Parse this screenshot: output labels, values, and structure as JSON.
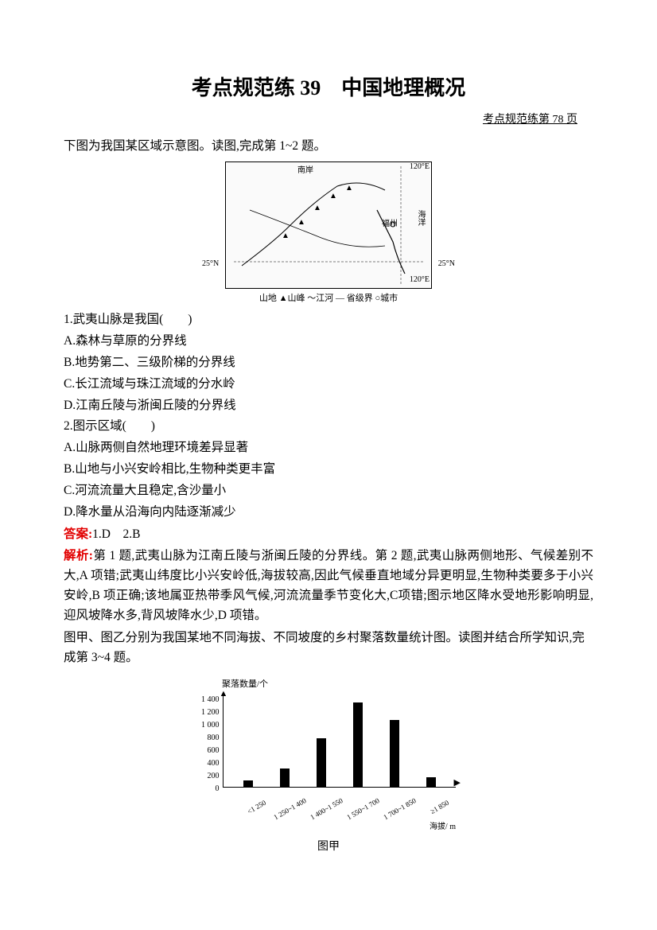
{
  "title": "考点规范练 39　中国地理概况",
  "subtitle": "考点规范练第 78 页",
  "intro1": "下图为我国某区域示意图。读图,完成第 1~2 题。",
  "map": {
    "top_label": "南岸",
    "ne_label": "120°E",
    "ocean_label": "海洋",
    "city_label": "福州",
    "lat_left": "25°N",
    "lat_right": "25°N",
    "lon_right": "120°E",
    "legend": "山地 ▲山峰 ～江河 — 省级界 ○城市"
  },
  "q1": {
    "stem": "1.武夷山脉是我国(　　)",
    "A": "A.森林与草原的分界线",
    "B": "B.地势第二、三级阶梯的分界线",
    "C": "C.长江流域与珠江流域的分水岭",
    "D": "D.江南丘陵与浙闽丘陵的分界线"
  },
  "q2": {
    "stem": "2.图示区域(　　)",
    "A": "A.山脉两侧自然地理环境差异显著",
    "B": "B.山地与小兴安岭相比,生物种类更丰富",
    "C": "C.河流流量大且稳定,含沙量小",
    "D": "D.降水量从沿海向内陆逐渐减少"
  },
  "answer_label": "答案:",
  "answer_text": "1.D　2.B",
  "explain_label": "解析:",
  "explain_text": "第 1 题,武夷山脉为江南丘陵与浙闽丘陵的分界线。第 2 题,武夷山脉两侧地形、气候差别不大,A 项错;武夷山纬度比小兴安岭低,海拔较高,因此气候垂直地域分异更明显,生物种类要多于小兴安岭,B 项正确;该地属亚热带季风气候,河流流量季节变化大,C项错;图示地区降水受地形影响明显,迎风坡降水多,背风坡降水少,D 项错。",
  "intro2": "图甲、图乙分别为我国某地不同海拔、不同坡度的乡村聚落数量统计图。读图并结合所学知识,完成第 3~4 题。",
  "chart": {
    "type": "bar",
    "ylabel": "聚落数量/个",
    "ymax": 1400,
    "ytick_step": 200,
    "yticks": [
      "1 400",
      "1 200",
      "1 000",
      "800",
      "600",
      "400",
      "200",
      "0"
    ],
    "categories": [
      "<1 250",
      "1 250~1 400",
      "1 400~1 550",
      "1 550~1 700",
      "1 700~1 850",
      "≥1 850"
    ],
    "values": [
      100,
      280,
      760,
      1320,
      1050,
      150
    ],
    "xlabel": "海拔/ m",
    "bar_color": "#000000",
    "axis_color": "#000000",
    "caption": "图甲"
  }
}
